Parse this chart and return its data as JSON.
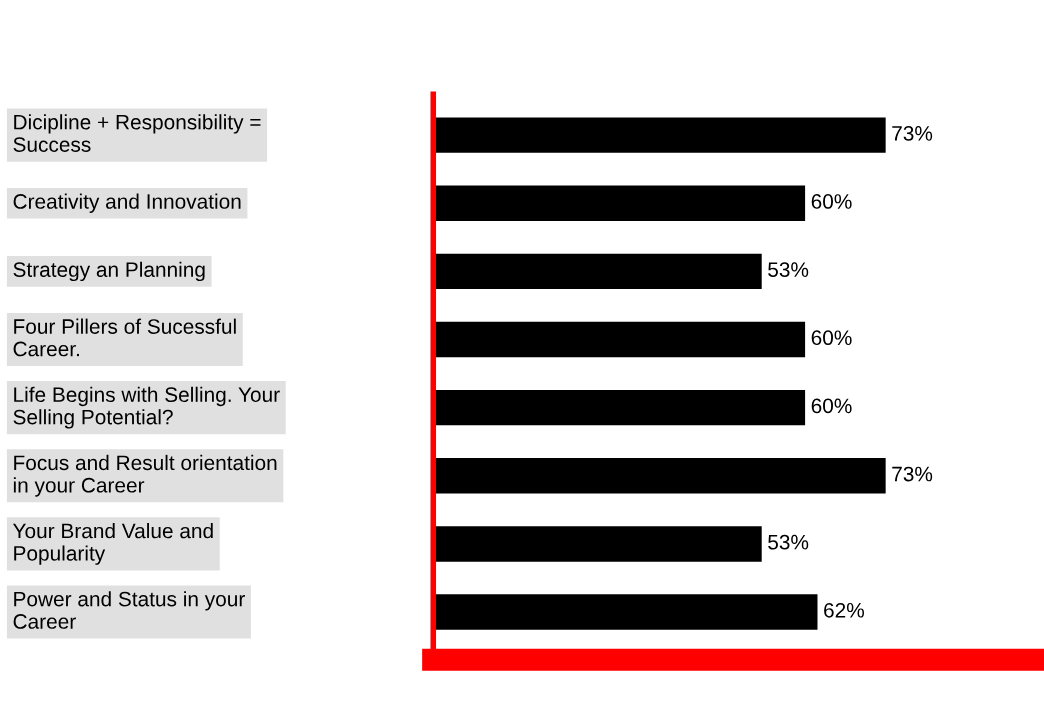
{
  "chart_data": {
    "type": "bar",
    "orientation": "horizontal",
    "categories": [
      "Dicipline + Responsibility = Success",
      "Creativity and Innovation",
      "Strategy an Planning",
      "Four Pillers of Sucessful Career.",
      "Life Begins with Selling. Your Selling Potential?",
      "Focus and Result orientation in your Career",
      "Your Brand Value and Popularity",
      "Power and Status in your Career"
    ],
    "values": [
      73,
      60,
      53,
      60,
      60,
      73,
      53,
      62
    ],
    "value_labels": [
      "73%",
      "60%",
      "53%",
      "60%",
      "60%",
      "73%",
      "53%",
      "62%"
    ],
    "color": "#000000"
  }
}
